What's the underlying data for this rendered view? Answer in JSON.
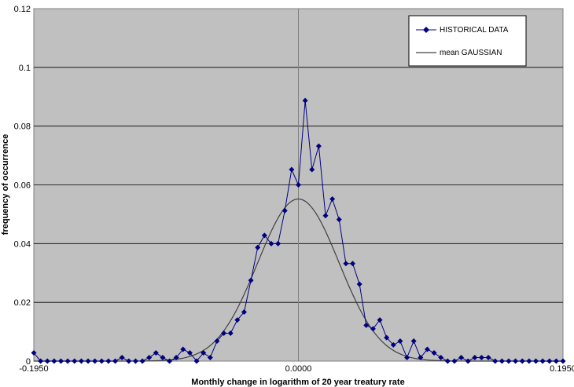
{
  "chart_data": {
    "type": "line",
    "title": "",
    "xlabel": "Monthly change in logarithm of 20 year treatury rate",
    "ylabel": "frequency of occurrence",
    "xlim": [
      -0.195,
      0.195
    ],
    "ylim": [
      0,
      0.12
    ],
    "x_ticks": [
      {
        "value": -0.195,
        "label": "-0.1950"
      },
      {
        "value": 0,
        "label": "0.0000"
      },
      {
        "value": 0.195,
        "label": "0.1950"
      }
    ],
    "y_ticks": [
      {
        "value": 0,
        "label": "0"
      },
      {
        "value": 0.02,
        "label": "0.02"
      },
      {
        "value": 0.04,
        "label": "0.04"
      },
      {
        "value": 0.06,
        "label": "0.06"
      },
      {
        "value": 0.08,
        "label": "0.08"
      },
      {
        "value": 0.1,
        "label": "0.1"
      },
      {
        "value": 0.12,
        "label": "0.12"
      }
    ],
    "grid": {
      "horizontal": true,
      "vertical": false
    },
    "plot_background": "#c0c0c0",
    "legend_position": "top-right",
    "series": [
      {
        "name": "HISTORICAL DATA",
        "color": "#000080",
        "marker": "diamond",
        "x": [
          -0.195,
          -0.19,
          -0.185,
          -0.18,
          -0.175,
          -0.17,
          -0.165,
          -0.16,
          -0.155,
          -0.15,
          -0.145,
          -0.14,
          -0.135,
          -0.13,
          -0.125,
          -0.12,
          -0.115,
          -0.11,
          -0.105,
          -0.1,
          -0.095,
          -0.09,
          -0.085,
          -0.08,
          -0.075,
          -0.07,
          -0.065,
          -0.06,
          -0.055,
          -0.05,
          -0.045,
          -0.04,
          -0.035,
          -0.03,
          -0.025,
          -0.02,
          -0.015,
          -0.01,
          -0.005,
          0,
          0.005,
          0.01,
          0.015,
          0.02,
          0.025,
          0.03,
          0.035,
          0.04,
          0.045,
          0.05,
          0.055,
          0.06,
          0.065,
          0.07,
          0.075,
          0.08,
          0.085,
          0.09,
          0.095,
          0.1,
          0.105,
          0.11,
          0.115,
          0.12,
          0.125,
          0.13,
          0.135,
          0.14,
          0.145,
          0.15,
          0.155,
          0.16,
          0.165,
          0.17,
          0.175,
          0.18,
          0.185,
          0.19,
          0.195
        ],
        "y": [
          0.0028,
          0,
          0,
          0,
          0,
          0,
          0,
          0,
          0,
          0,
          0,
          0,
          0,
          0.0012,
          0,
          0,
          0,
          0.0012,
          0.0028,
          0.0012,
          0,
          0.0012,
          0.004,
          0.0028,
          0,
          0.0028,
          0.0012,
          0.0068,
          0.0095,
          0.0095,
          0.014,
          0.0167,
          0.0275,
          0.0387,
          0.0428,
          0.04,
          0.04,
          0.0512,
          0.0652,
          0.06,
          0.0887,
          0.0652,
          0.0732,
          0.0495,
          0.0552,
          0.0482,
          0.0332,
          0.0332,
          0.0262,
          0.0122,
          0.011,
          0.014,
          0.008,
          0.0055,
          0.0068,
          0.0012,
          0.0068,
          0.0012,
          0.004,
          0.0028,
          0.0012,
          0,
          0,
          0.0012,
          0,
          0.0012,
          0.0012,
          0.0012,
          0,
          0,
          0,
          0,
          0,
          0,
          0,
          0,
          0,
          0,
          0
        ]
      },
      {
        "name": "mean GAUSSIAN",
        "color": "#404040",
        "marker": "none",
        "mean": 0,
        "sigma": 0.03,
        "peak": 0.0552
      }
    ]
  }
}
